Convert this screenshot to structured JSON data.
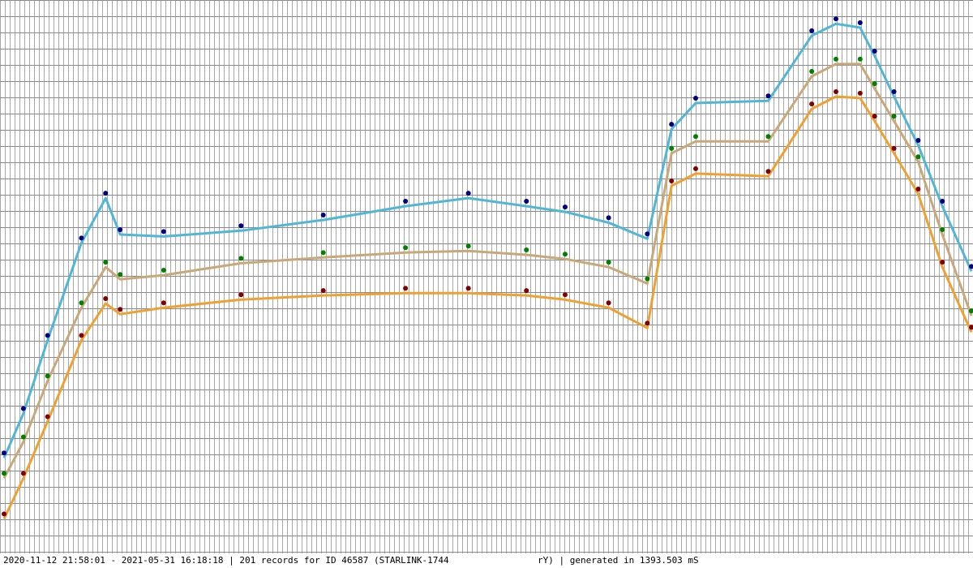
{
  "chart_data": {
    "type": "line",
    "x": [
      0,
      4,
      9,
      16,
      21,
      24,
      33,
      49,
      66,
      83,
      96,
      108,
      116,
      125,
      133,
      138,
      143,
      158,
      167,
      172,
      177,
      180,
      184,
      189,
      194,
      200
    ],
    "xlim": [
      0,
      200
    ],
    "ylim": [
      329,
      473
    ],
    "grid": true,
    "series": [
      {
        "color": "#4fb6d6",
        "marker_color": "#000080",
        "values": [
          353.5,
          365.1,
          384.2,
          409.6,
          421.3,
          411.8,
          411.3,
          412.8,
          415.6,
          419.2,
          421.3,
          419.2,
          417.7,
          414.9,
          410.7,
          439.3,
          446.1,
          446.7,
          463.7,
          466.8,
          465.8,
          458.4,
          447.8,
          435.1,
          419.2,
          402.2
        ]
      },
      {
        "color": "#c8a878",
        "marker_color": "#008000",
        "values": [
          348.2,
          357.7,
          373.6,
          392.7,
          403.3,
          400.1,
          401.2,
          404.3,
          405.8,
          407.1,
          407.5,
          406.5,
          405.4,
          403.3,
          399.0,
          433.0,
          436.1,
          436.1,
          453.1,
          456.3,
          456.3,
          449.9,
          441.4,
          430.8,
          411.8,
          390.6
        ]
      },
      {
        "color": "#f0a030",
        "marker_color": "#800000",
        "values": [
          337.6,
          348.2,
          363.0,
          384.2,
          393.8,
          391.0,
          392.7,
          394.8,
          395.9,
          396.5,
          396.5,
          395.9,
          394.8,
          392.7,
          387.4,
          424.5,
          427.7,
          427.0,
          444.6,
          447.8,
          447.4,
          441.4,
          433.0,
          422.4,
          403.3,
          386.3
        ]
      }
    ],
    "footer_left": "2020-11-12 21:58:01 - 2021-05-31 16:18:18 | 201 records for ID 46587 (STARLINK-1744",
    "footer_right": "rY) | generated in 1393.503 mS"
  }
}
